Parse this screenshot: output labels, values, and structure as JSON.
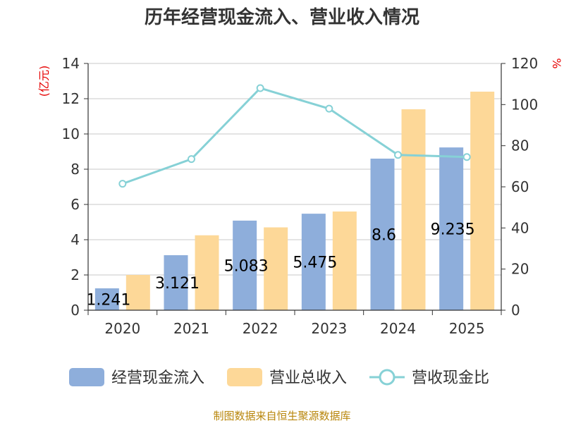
{
  "chart_data": {
    "type": "bar",
    "title": "历年经营现金流入、营业收入情况",
    "categories": [
      "2020",
      "2021",
      "2022",
      "2023",
      "2024",
      "2025"
    ],
    "series": [
      {
        "name": "经营现金流入",
        "type": "bar",
        "axis": "left",
        "color": "#8eaedb",
        "values": [
          1.241,
          3.121,
          5.083,
          5.475,
          8.6,
          9.235
        ],
        "labels": [
          "1.241",
          "3.121",
          "5.083",
          "5.475",
          "8.6",
          "9.235"
        ]
      },
      {
        "name": "营业总收入",
        "type": "bar",
        "axis": "left",
        "color": "#fdd898",
        "values": [
          2.0,
          4.25,
          4.7,
          5.6,
          11.4,
          12.4
        ]
      },
      {
        "name": "营收现金比",
        "type": "line",
        "axis": "right",
        "color": "#86d1d6",
        "values": [
          61.5,
          73.5,
          108,
          98,
          75.5,
          74.5
        ]
      }
    ],
    "y_left": {
      "unit": "(亿元)",
      "ylim": [
        0,
        14
      ],
      "ticks": [
        "0",
        "2",
        "4",
        "6",
        "8",
        "10",
        "12",
        "14"
      ]
    },
    "y_right": {
      "unit": "%",
      "ylim": [
        0,
        120
      ],
      "ticks": [
        "0",
        "20",
        "40",
        "60",
        "80",
        "100",
        "120"
      ]
    },
    "grid": true,
    "legend_position": "bottom"
  },
  "footer": {
    "source": "制图数据来自恒生聚源数据库"
  }
}
